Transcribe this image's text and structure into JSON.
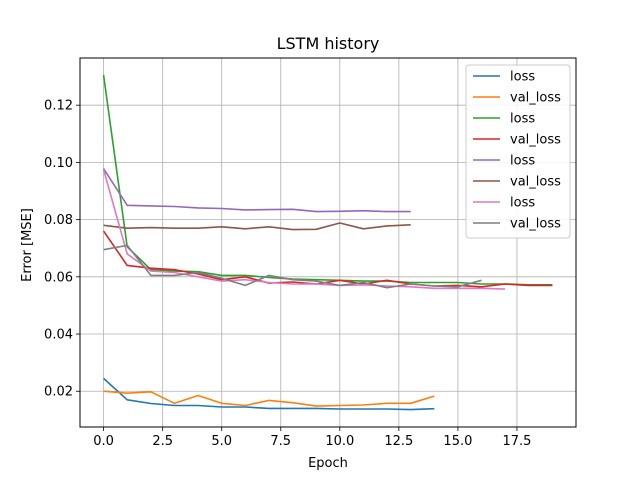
{
  "chart_data": {
    "type": "line",
    "title": "LSTM history",
    "xlabel": "Epoch",
    "ylabel": "Error [MSE]",
    "xlim": [
      -1,
      20
    ],
    "ylim": [
      0.0075,
      0.1365
    ],
    "xticks": [
      0.0,
      2.5,
      5.0,
      7.5,
      10.0,
      12.5,
      15.0,
      17.5
    ],
    "xtick_labels": [
      "0.0",
      "2.5",
      "5.0",
      "7.5",
      "10.0",
      "12.5",
      "15.0",
      "17.5"
    ],
    "yticks": [
      0.02,
      0.04,
      0.06,
      0.08,
      0.1,
      0.12
    ],
    "ytick_labels": [
      "0.02",
      "0.04",
      "0.06",
      "0.08",
      "0.10",
      "0.12"
    ],
    "grid": true,
    "legend_position": "top-right",
    "series": [
      {
        "name": "loss",
        "color": "#1f77b4",
        "x": [
          0,
          1,
          2,
          3,
          4,
          5,
          6,
          7,
          8,
          9,
          10,
          11,
          12,
          13,
          14
        ],
        "y": [
          0.0245,
          0.017,
          0.0157,
          0.015,
          0.015,
          0.0145,
          0.0145,
          0.014,
          0.014,
          0.014,
          0.0138,
          0.0138,
          0.0138,
          0.0136,
          0.0139
        ]
      },
      {
        "name": "val_loss",
        "color": "#ff7f0e",
        "x": [
          0,
          1,
          2,
          3,
          4,
          5,
          6,
          7,
          8,
          9,
          10,
          11,
          12,
          13,
          14
        ],
        "y": [
          0.02,
          0.0193,
          0.0198,
          0.0158,
          0.0185,
          0.0158,
          0.015,
          0.0168,
          0.016,
          0.0148,
          0.015,
          0.0152,
          0.0158,
          0.0158,
          0.0183
        ]
      },
      {
        "name": "loss",
        "color": "#2ca02c",
        "x": [
          0,
          1,
          2,
          3,
          4,
          5,
          6,
          7,
          8,
          9,
          10,
          11,
          12,
          13,
          14,
          15,
          16,
          17,
          18,
          19
        ],
        "y": [
          0.1305,
          0.0705,
          0.0625,
          0.062,
          0.0618,
          0.0605,
          0.0605,
          0.0598,
          0.0592,
          0.059,
          0.0588,
          0.0585,
          0.0585,
          0.058,
          0.058,
          0.058,
          0.0575,
          0.0575,
          0.0572,
          0.0572
        ]
      },
      {
        "name": "val_loss",
        "color": "#d62728",
        "x": [
          0,
          1,
          2,
          3,
          4,
          5,
          6,
          7,
          8,
          9,
          10,
          11,
          12,
          13,
          14,
          15,
          16,
          17,
          18,
          19
        ],
        "y": [
          0.076,
          0.064,
          0.063,
          0.0625,
          0.061,
          0.059,
          0.06,
          0.0578,
          0.0582,
          0.0575,
          0.0588,
          0.0575,
          0.0588,
          0.0575,
          0.0568,
          0.057,
          0.0565,
          0.0575,
          0.057,
          0.057
        ]
      },
      {
        "name": "loss",
        "color": "#9467bd",
        "x": [
          0,
          1,
          2,
          3,
          4,
          5,
          6,
          7,
          8,
          9,
          10,
          11,
          12,
          13
        ],
        "y": [
          0.0978,
          0.085,
          0.0848,
          0.0846,
          0.0841,
          0.0839,
          0.0834,
          0.0835,
          0.0836,
          0.0828,
          0.0829,
          0.0831,
          0.0828,
          0.0828
        ]
      },
      {
        "name": "val_loss",
        "color": "#8c564b",
        "x": [
          0,
          1,
          2,
          3,
          4,
          5,
          6,
          7,
          8,
          9,
          10,
          11,
          12,
          13
        ],
        "y": [
          0.078,
          0.077,
          0.0772,
          0.077,
          0.077,
          0.0775,
          0.0768,
          0.0775,
          0.0765,
          0.0766,
          0.0788,
          0.0768,
          0.0778,
          0.0782
        ]
      },
      {
        "name": "loss",
        "color": "#e377c2",
        "x": [
          0,
          1,
          2,
          3,
          4,
          5,
          6,
          7,
          8,
          9,
          10,
          11,
          12,
          13,
          14,
          15,
          16,
          17
        ],
        "y": [
          0.0975,
          0.068,
          0.062,
          0.0615,
          0.06,
          0.0585,
          0.059,
          0.058,
          0.0575,
          0.0575,
          0.057,
          0.0572,
          0.0568,
          0.0565,
          0.056,
          0.056,
          0.056,
          0.0557
        ]
      },
      {
        "name": "val_loss",
        "color": "#7f7f7f",
        "x": [
          0,
          1,
          2,
          3,
          4,
          5,
          6,
          7,
          8,
          9,
          10,
          11,
          12,
          13,
          14,
          15,
          16
        ],
        "y": [
          0.0695,
          0.071,
          0.0605,
          0.0605,
          0.0615,
          0.0595,
          0.057,
          0.0605,
          0.059,
          0.0585,
          0.057,
          0.058,
          0.0562,
          0.0575,
          0.0568,
          0.0565,
          0.0588
        ]
      }
    ]
  }
}
